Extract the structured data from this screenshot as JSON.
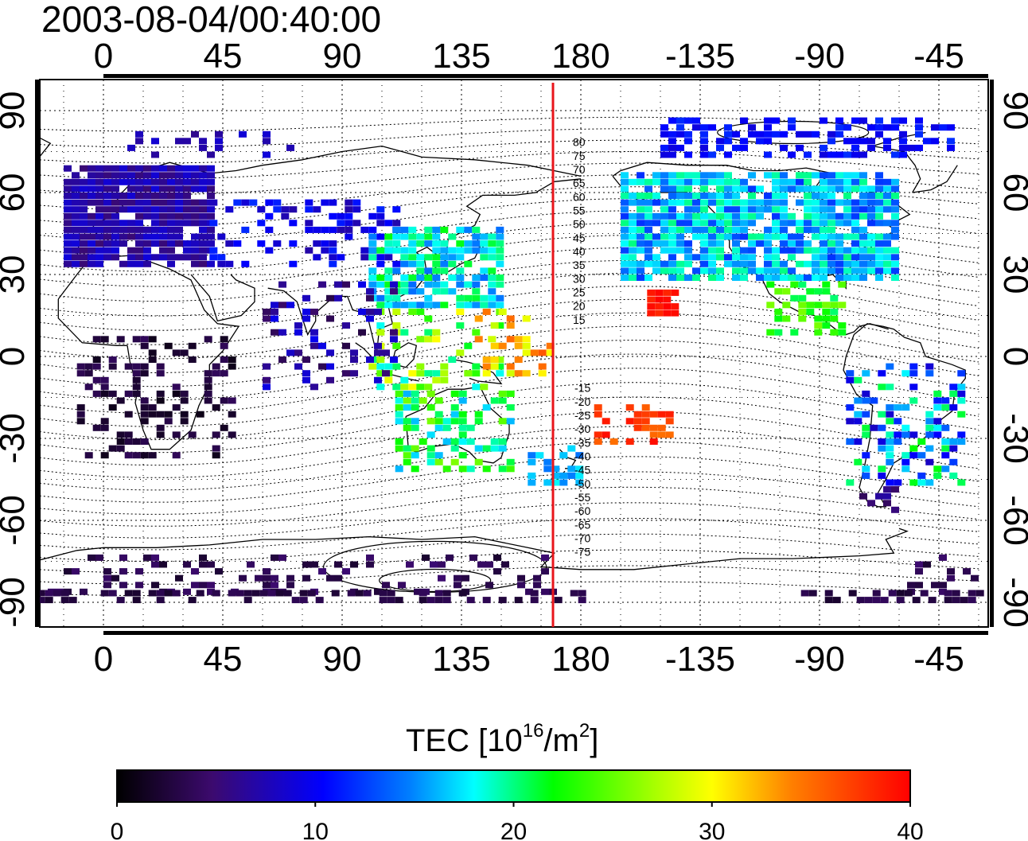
{
  "timestamp": "2003-08-04/00:40:00",
  "map": {
    "x_ticks": [
      "0",
      "45",
      "90",
      "135",
      "180",
      "-135",
      "-90",
      "-45"
    ],
    "y_ticks": [
      "90",
      "60",
      "30",
      "0",
      "-30",
      "-60",
      "-90"
    ],
    "meridian_line_color": "#e8151b",
    "contour_labels": [
      "80",
      "75",
      "70",
      "65",
      "60",
      "55",
      "50",
      "45",
      "40",
      "35",
      "30",
      "25",
      "20",
      "15",
      "-15",
      "-20",
      "-25",
      "-30",
      "-35",
      "-40",
      "-45",
      "-50",
      "-55",
      "-60",
      "-65",
      "-70",
      "-75"
    ]
  },
  "colorbar": {
    "title_main": "TEC  [10",
    "title_sup1": "16",
    "title_mid": "/m",
    "title_sup2": "2",
    "title_end": "]",
    "ticks": [
      "0",
      "10",
      "20",
      "30",
      "40"
    ],
    "range": [
      0,
      40
    ],
    "colors": [
      "#000000",
      "#3c0a6e",
      "#0000ff",
      "#00ffff",
      "#00ff00",
      "#ffff00",
      "#ff8000",
      "#ff0000"
    ]
  }
}
